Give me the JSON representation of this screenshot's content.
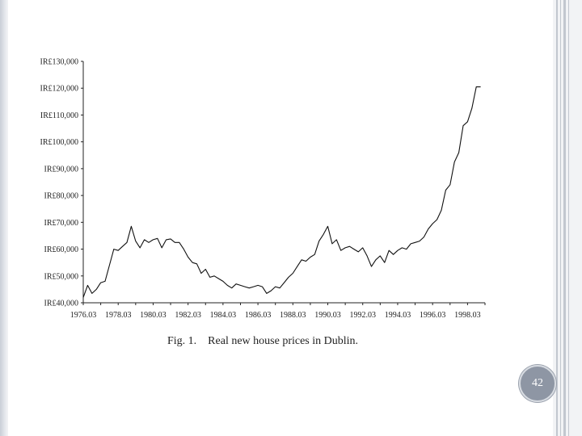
{
  "slide": {
    "number": "42",
    "caption": "Fig. 1.    Real new house prices in Dublin."
  },
  "colors": {
    "line": "#111111",
    "axis": "#222222",
    "accent": "#8e96a4"
  },
  "chart_data": {
    "type": "line",
    "title": "",
    "xlabel": "",
    "ylabel": "",
    "ylim": [
      40000,
      130000
    ],
    "y_ticks": [
      40000,
      50000,
      60000,
      70000,
      80000,
      90000,
      100000,
      110000,
      120000,
      130000
    ],
    "y_tick_labels": [
      "IR£40,000",
      "IR£50,000",
      "IR£60,000",
      "IR£70,000",
      "IR£80,000",
      "IR£90,000",
      "IR£100,000",
      "IR£110,000",
      "IR£120,000",
      "IR£130,000"
    ],
    "x_tick_labels": [
      "1976.03",
      "1978.03",
      "1980.03",
      "1982.03",
      "1984.03",
      "1986.03",
      "1988.03",
      "1990.03",
      "1992.03",
      "1994.03",
      "1996.03",
      "1998.03"
    ],
    "x_range": [
      1976.0,
      1999.0
    ],
    "grid": false,
    "series": [
      {
        "x": [
          1976.0,
          1976.25,
          1976.5,
          1976.75,
          1977.0,
          1977.25,
          1977.5,
          1977.75,
          1978.0,
          1978.25,
          1978.5,
          1978.75,
          1979.0,
          1979.25,
          1979.5,
          1979.75,
          1980.0,
          1980.25,
          1980.5,
          1980.75,
          1981.0,
          1981.25,
          1981.5,
          1981.75,
          1982.0,
          1982.25,
          1982.5,
          1982.75,
          1983.0,
          1983.25,
          1983.5,
          1983.75,
          1984.0,
          1984.25,
          1984.5,
          1984.75,
          1985.0,
          1985.25,
          1985.5,
          1985.75,
          1986.0,
          1986.25,
          1986.5,
          1986.75,
          1987.0,
          1987.25,
          1987.5,
          1987.75,
          1988.0,
          1988.25,
          1988.5,
          1988.75,
          1989.0,
          1989.25,
          1989.5,
          1989.75,
          1990.0,
          1990.25,
          1990.5,
          1990.75,
          1991.0,
          1991.25,
          1991.5,
          1991.75,
          1992.0,
          1992.25,
          1992.5,
          1992.75,
          1993.0,
          1993.25,
          1993.5,
          1993.75,
          1994.0,
          1994.25,
          1994.5,
          1994.75,
          1995.0,
          1995.25,
          1995.5,
          1995.75,
          1996.0,
          1996.25,
          1996.5,
          1996.75,
          1997.0,
          1997.25,
          1997.5,
          1997.75,
          1998.0,
          1998.25,
          1998.5,
          1998.75
        ],
        "values": [
          42000,
          46500,
          43500,
          45000,
          47500,
          48000,
          54000,
          60000,
          59500,
          61000,
          62500,
          68500,
          63000,
          60500,
          63500,
          62500,
          63500,
          64000,
          60500,
          63500,
          63800,
          62500,
          62500,
          60000,
          57000,
          55000,
          54500,
          51000,
          52500,
          49500,
          50000,
          49000,
          48000,
          46500,
          45500,
          47000,
          46500,
          46000,
          45500,
          46000,
          46500,
          46000,
          43500,
          44500,
          46000,
          45500,
          47500,
          49500,
          51000,
          53500,
          56000,
          55500,
          57000,
          58000,
          63000,
          65500,
          68500,
          62000,
          63500,
          59500,
          60500,
          61000,
          60000,
          59000,
          60500,
          57500,
          53500,
          56000,
          57500,
          55000,
          59500,
          58000,
          59500,
          60500,
          60000,
          62000,
          62500,
          63000,
          64500,
          67500,
          69500,
          71000,
          74500,
          82000,
          84000,
          92500,
          96000,
          106000,
          107500,
          112500,
          120500,
          120500
        ]
      }
    ]
  }
}
